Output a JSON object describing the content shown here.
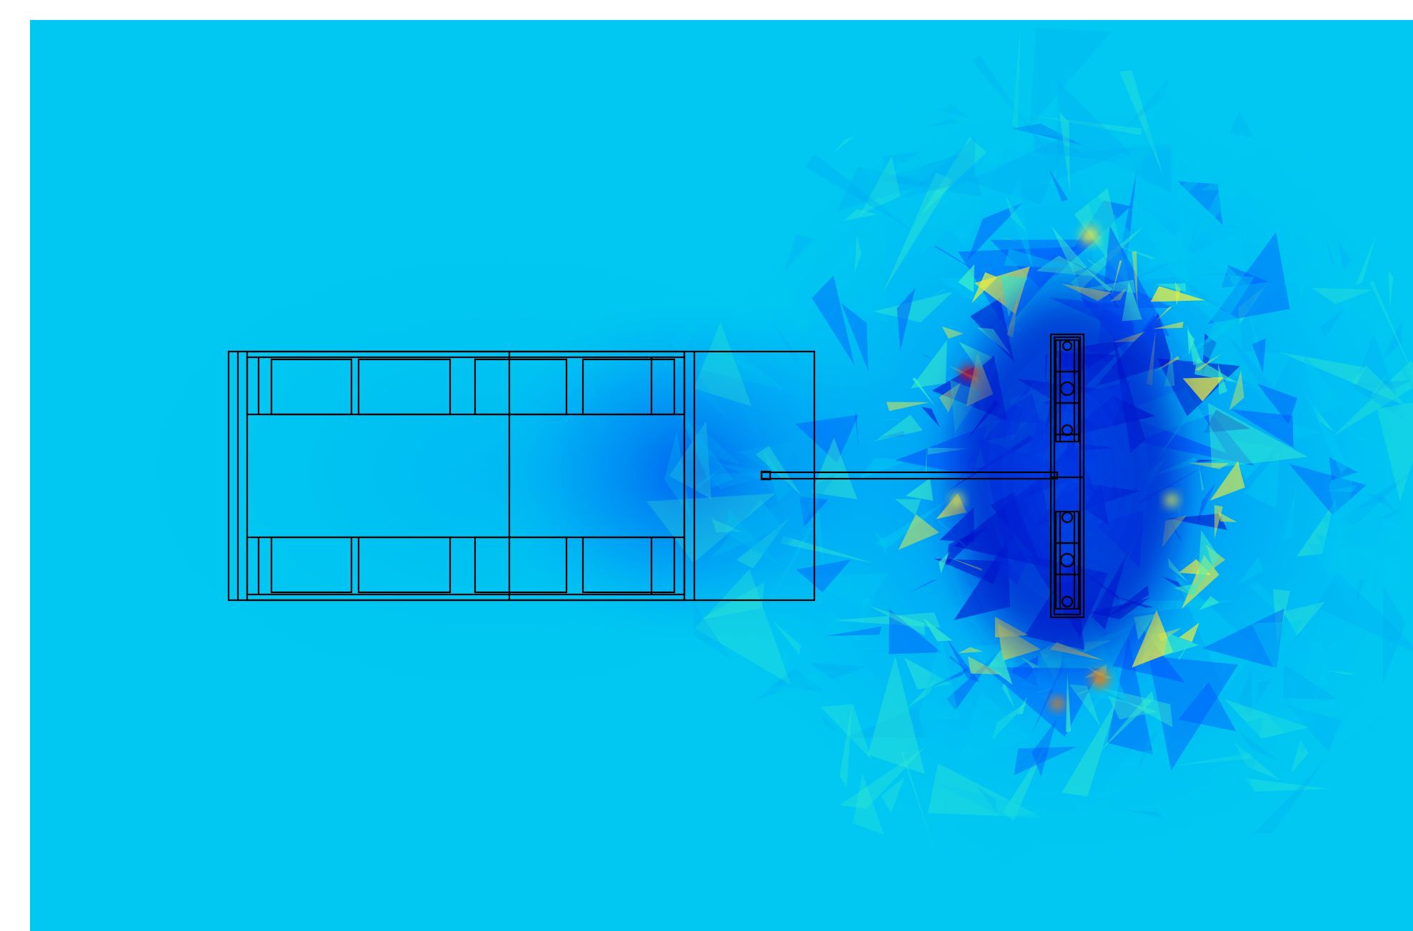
{
  "figure": {
    "background_color": "#ffffff",
    "field_base_color": "#00c8f2",
    "colormap": [
      "#0000c8",
      "#0050ff",
      "#00c8f2",
      "#3cf0c8",
      "#f0f03c",
      "#ff7800",
      "#e60000"
    ],
    "outline_color": "#000000",
    "components": [
      {
        "name": "main-body"
      },
      {
        "name": "connecting-rod"
      },
      {
        "name": "coil-plate"
      }
    ]
  }
}
